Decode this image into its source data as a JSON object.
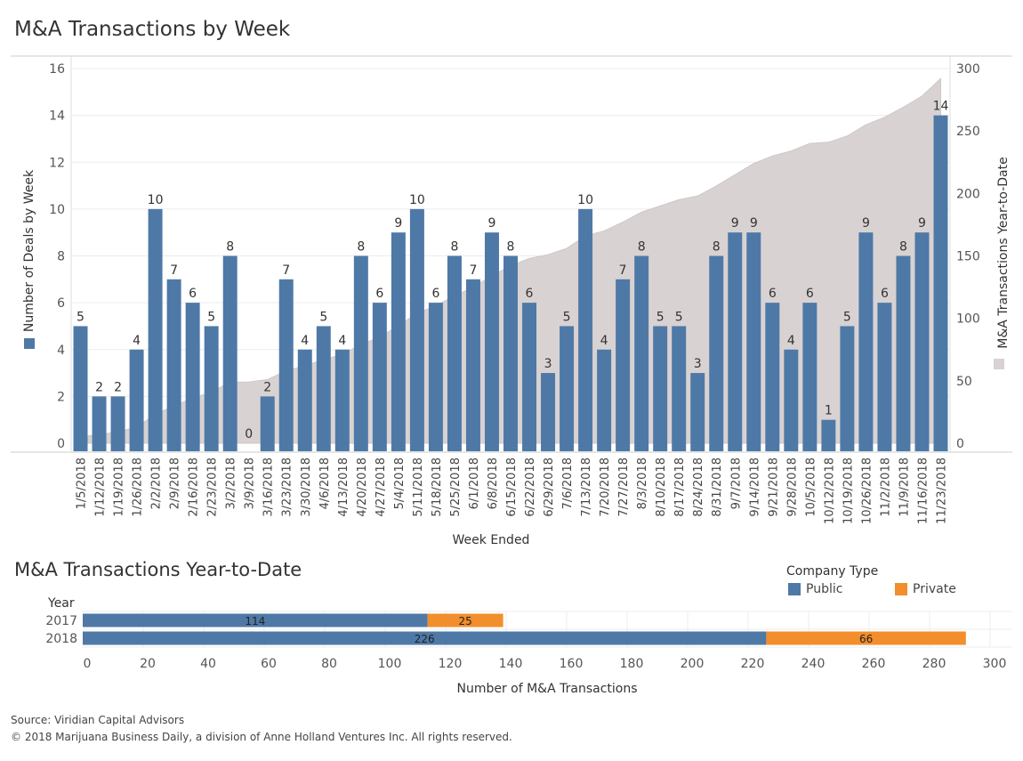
{
  "title_top": "M&A Transactions by Week",
  "title_bottom": "M&A Transactions Year-to-Date",
  "colors": {
    "public": "#4e79a7",
    "private": "#f28e2b",
    "cumulative": "#d9d2d2",
    "grid": "#ececec"
  },
  "legend": {
    "title": "Company Type",
    "public": "Public",
    "private": "Private"
  },
  "footer": {
    "source": "Source: Viridian Capital Advisors",
    "copyright": "© 2018 Marijuana Business Daily, a division of Anne Holland Ventures Inc. All rights reserved."
  },
  "chart_data": [
    {
      "type": "bar",
      "title": "M&A Transactions by Week",
      "xlabel": "Week Ended",
      "ylabel": "Number of Deals by Week",
      "y2label": "M&A Transactions Year-to-Date",
      "ylim": [
        0,
        16
      ],
      "y2lim": [
        0,
        300
      ],
      "yticks": [
        0,
        2,
        4,
        6,
        8,
        10,
        12,
        14,
        16
      ],
      "y2ticks": [
        0,
        50,
        100,
        150,
        200,
        250,
        300
      ],
      "categories": [
        "1/5/2018",
        "1/12/2018",
        "1/19/2018",
        "1/26/2018",
        "2/2/2018",
        "2/9/2018",
        "2/16/2018",
        "2/23/2018",
        "3/2/2018",
        "3/9/2018",
        "3/16/2018",
        "3/23/2018",
        "3/30/2018",
        "4/6/2018",
        "4/13/2018",
        "4/20/2018",
        "4/27/2018",
        "5/4/2018",
        "5/11/2018",
        "5/18/2018",
        "5/25/2018",
        "6/1/2018",
        "6/8/2018",
        "6/15/2018",
        "6/22/2018",
        "6/29/2018",
        "7/6/2018",
        "7/13/2018",
        "7/20/2018",
        "7/27/2018",
        "8/3/2018",
        "8/10/2018",
        "8/17/2018",
        "8/24/2018",
        "8/31/2018",
        "9/7/2018",
        "9/14/2018",
        "9/21/2018",
        "9/28/2018",
        "10/5/2018",
        "10/12/2018",
        "10/19/2018",
        "10/26/2018",
        "11/2/2018",
        "11/9/2018",
        "11/16/2018",
        "11/23/2018"
      ],
      "series": [
        {
          "name": "Number of Deals by Week",
          "kind": "bar",
          "axis": "left",
          "values": [
            5,
            2,
            2,
            4,
            10,
            7,
            6,
            5,
            8,
            0,
            2,
            7,
            4,
            5,
            4,
            8,
            6,
            9,
            10,
            6,
            8,
            7,
            9,
            8,
            6,
            3,
            5,
            10,
            4,
            7,
            8,
            5,
            5,
            3,
            8,
            9,
            9,
            6,
            4,
            6,
            1,
            5,
            9,
            6,
            8,
            9,
            14
          ]
        },
        {
          "name": "M&A Transactions Year-to-Date",
          "kind": "area",
          "axis": "right",
          "values": [
            5,
            7,
            9,
            13,
            23,
            30,
            36,
            41,
            49,
            49,
            51,
            58,
            62,
            67,
            71,
            79,
            85,
            94,
            104,
            110,
            118,
            125,
            134,
            142,
            148,
            151,
            156,
            166,
            170,
            177,
            185,
            190,
            195,
            198,
            206,
            215,
            224,
            230,
            234,
            240,
            241,
            246,
            255,
            261,
            269,
            278,
            292
          ]
        }
      ]
    },
    {
      "type": "bar",
      "orientation": "horizontal",
      "stacked": true,
      "title": "M&A Transactions Year-to-Date",
      "xlabel": "Number of M&A Transactions",
      "ylabel": "Year",
      "xlim": [
        0,
        300
      ],
      "xticks": [
        0,
        20,
        40,
        60,
        80,
        100,
        120,
        140,
        160,
        180,
        200,
        220,
        240,
        260,
        280,
        300
      ],
      "categories": [
        "2017",
        "2018"
      ],
      "series": [
        {
          "name": "Public",
          "values": [
            114,
            226
          ]
        },
        {
          "name": "Private",
          "values": [
            25,
            66
          ]
        }
      ]
    }
  ]
}
